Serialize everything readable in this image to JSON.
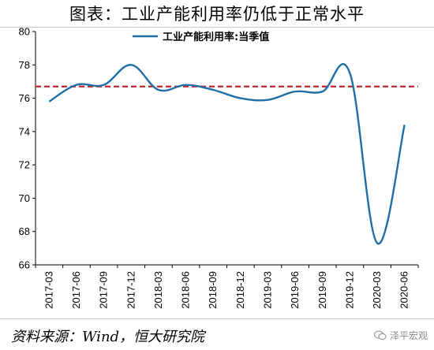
{
  "header": {
    "title": "图表：工业产能利用率仍低于正常水平"
  },
  "footer": {
    "source": "资料来源：Wind，恒大研究院",
    "watermark": "泽平宏观"
  },
  "chart_data": {
    "type": "line",
    "title": "图表：工业产能利用率仍低于正常水平",
    "xlabel": "",
    "ylabel": "",
    "ylim": [
      66,
      80
    ],
    "yticks": [
      66,
      68,
      70,
      72,
      74,
      76,
      78,
      80
    ],
    "categories": [
      "2017-03",
      "2017-06",
      "2017-09",
      "2017-12",
      "2018-03",
      "2018-06",
      "2018-09",
      "2018-12",
      "2019-03",
      "2019-06",
      "2019-09",
      "2019-12",
      "2020-03",
      "2020-06"
    ],
    "series": [
      {
        "name": "工业产能利用率:当季值",
        "color": "#1f6fa6",
        "values": [
          75.8,
          76.8,
          76.8,
          78.0,
          76.5,
          76.8,
          76.5,
          76.0,
          75.9,
          76.4,
          76.4,
          77.5,
          67.3,
          74.4
        ]
      }
    ],
    "reference_line": {
      "value": 76.7,
      "color": "#c0272d",
      "style": "dashed"
    },
    "legend": {
      "position": "top-center"
    },
    "grid": false
  }
}
